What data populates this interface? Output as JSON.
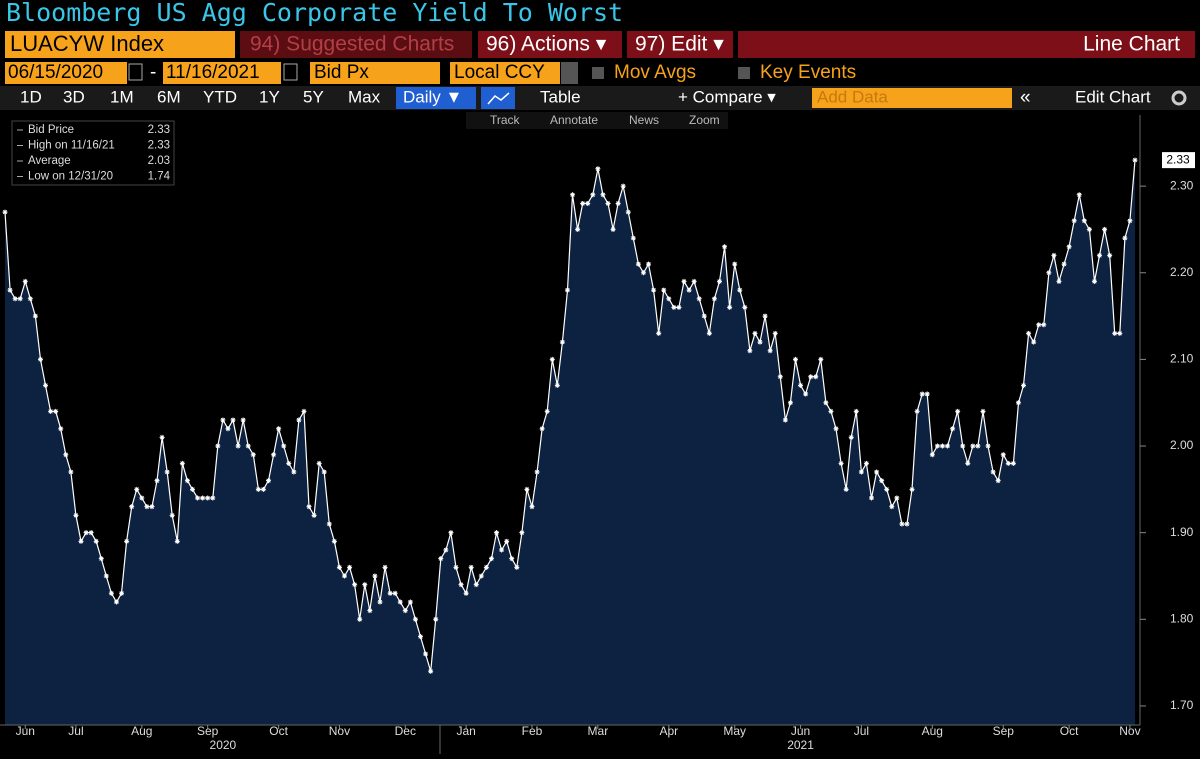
{
  "ui": {
    "window_title": "Bloomberg US Agg Corporate Yield To Worst",
    "ticker": "LUACYW Index",
    "suggested": "94) Suggested Charts",
    "actions": "96) Actions ▾",
    "edit": "97) Edit ▾",
    "chart_kind": "Line Chart",
    "start_date": "06/15/2020",
    "date_sep": "-",
    "end_date": "11/16/2021",
    "field": "Bid Px",
    "currency": "Local CCY",
    "mov_avgs": "Mov Avgs",
    "key_events": "Key Events",
    "ranges": [
      "1D",
      "3D",
      "1M",
      "6M",
      "YTD",
      "1Y",
      "5Y",
      "Max"
    ],
    "frequency": "Daily ▼",
    "table": "Table",
    "compare": "+ Compare ▾",
    "add_data": "Add Data",
    "collapse": "«",
    "edit_chart": "Edit Chart",
    "tools": [
      "Track",
      "Annotate",
      "News",
      "Zoom"
    ]
  },
  "chart_data": {
    "type": "line",
    "color": "#ffffff",
    "fill": "#0c2240",
    "legend": [
      {
        "label": "Bid Price",
        "value": 2.33
      },
      {
        "label": "High on 11/16/21",
        "value": 2.33
      },
      {
        "label": "Average",
        "value": 2.03
      },
      {
        "label": "Low on 12/31/20",
        "value": 1.74
      }
    ],
    "values": [
      2.27,
      2.18,
      2.17,
      2.17,
      2.19,
      2.17,
      2.15,
      2.1,
      2.07,
      2.04,
      2.04,
      2.02,
      1.99,
      1.97,
      1.92,
      1.89,
      1.9,
      1.9,
      1.89,
      1.87,
      1.85,
      1.83,
      1.82,
      1.83,
      1.89,
      1.93,
      1.95,
      1.94,
      1.93,
      1.93,
      1.96,
      2.01,
      1.97,
      1.92,
      1.89,
      1.98,
      1.96,
      1.95,
      1.94,
      1.94,
      1.94,
      1.94,
      2.0,
      2.03,
      2.02,
      2.03,
      2.0,
      2.03,
      2.0,
      1.99,
      1.95,
      1.95,
      1.96,
      1.99,
      2.02,
      2.0,
      1.98,
      1.97,
      2.03,
      2.04,
      1.93,
      1.92,
      1.98,
      1.97,
      1.91,
      1.89,
      1.86,
      1.85,
      1.86,
      1.84,
      1.8,
      1.84,
      1.81,
      1.85,
      1.82,
      1.86,
      1.83,
      1.83,
      1.82,
      1.81,
      1.82,
      1.8,
      1.78,
      1.76,
      1.74,
      1.8,
      1.87,
      1.88,
      1.9,
      1.86,
      1.84,
      1.83,
      1.86,
      1.84,
      1.85,
      1.86,
      1.87,
      1.9,
      1.88,
      1.89,
      1.87,
      1.86,
      1.9,
      1.95,
      1.93,
      1.97,
      2.02,
      2.04,
      2.1,
      2.07,
      2.12,
      2.18,
      2.29,
      2.25,
      2.28,
      2.28,
      2.29,
      2.32,
      2.29,
      2.28,
      2.25,
      2.28,
      2.3,
      2.27,
      2.24,
      2.21,
      2.2,
      2.21,
      2.18,
      2.13,
      2.18,
      2.17,
      2.16,
      2.16,
      2.19,
      2.18,
      2.19,
      2.17,
      2.15,
      2.13,
      2.17,
      2.19,
      2.23,
      2.16,
      2.21,
      2.18,
      2.16,
      2.11,
      2.13,
      2.12,
      2.15,
      2.11,
      2.13,
      2.08,
      2.03,
      2.05,
      2.1,
      2.07,
      2.06,
      2.08,
      2.08,
      2.1,
      2.05,
      2.04,
      2.02,
      1.98,
      1.95,
      2.01,
      2.04,
      1.97,
      1.98,
      1.94,
      1.97,
      1.96,
      1.95,
      1.93,
      1.94,
      1.91,
      1.91,
      1.95,
      2.04,
      2.06,
      2.06,
      1.99,
      2.0,
      2.0,
      2.0,
      2.02,
      2.04,
      2.0,
      1.98,
      2.0,
      2.0,
      2.04,
      2.0,
      1.97,
      1.96,
      1.99,
      1.98,
      1.98,
      2.05,
      2.07,
      2.13,
      2.12,
      2.14,
      2.14,
      2.2,
      2.22,
      2.19,
      2.21,
      2.23,
      2.26,
      2.29,
      2.26,
      2.25,
      2.19,
      2.22,
      2.25,
      2.22,
      2.13,
      2.13,
      2.24,
      2.26,
      2.33
    ],
    "xlim": [
      0,
      223
    ],
    "xticks": [
      {
        "value": 4,
        "label": "Jun"
      },
      {
        "value": 14,
        "label": "Jul"
      },
      {
        "value": 27,
        "label": "Aug"
      },
      {
        "value": 40,
        "label": "Sep"
      },
      {
        "value": 54,
        "label": "Oct"
      },
      {
        "value": 66,
        "label": "Nov"
      },
      {
        "value": 79,
        "label": "Dec"
      },
      {
        "value": 91,
        "label": "Jan"
      },
      {
        "value": 104,
        "label": "Feb"
      },
      {
        "value": 117,
        "label": "Mar"
      },
      {
        "value": 131,
        "label": "Apr"
      },
      {
        "value": 144,
        "label": "May"
      },
      {
        "value": 157,
        "label": "Jun"
      },
      {
        "value": 169,
        "label": "Jul"
      },
      {
        "value": 183,
        "label": "Aug"
      },
      {
        "value": 197,
        "label": "Sep"
      },
      {
        "value": 210,
        "label": "Oct"
      },
      {
        "value": 222,
        "label": "Nov"
      }
    ],
    "xgroups": [
      {
        "value": 43,
        "label": "2020"
      },
      {
        "value": 157,
        "label": "2021"
      }
    ],
    "ylim": [
      1.678,
      2.359
    ],
    "yticks": [
      {
        "value": 1.7,
        "label": "1.70"
      },
      {
        "value": 1.8,
        "label": "1.80"
      },
      {
        "value": 1.9,
        "label": "1.90"
      },
      {
        "value": 2.0,
        "label": "2.00"
      },
      {
        "value": 2.1,
        "label": "2.10"
      },
      {
        "value": 2.2,
        "label": "2.20"
      },
      {
        "value": 2.3,
        "label": "2.30"
      }
    ]
  }
}
